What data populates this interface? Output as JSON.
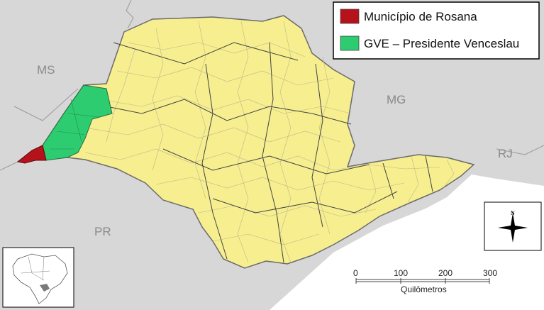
{
  "legend": {
    "items": [
      {
        "label": "Município de Rosana",
        "color": "#b5121b"
      },
      {
        "label": "GVE – Presidente Venceslau",
        "color": "#2ecc71"
      }
    ]
  },
  "region_labels": {
    "ms": "MS",
    "mg": "MG",
    "rj": "RJ",
    "pr": "PR"
  },
  "colors": {
    "state_fill": "#f6ee8f",
    "neighbor_fill": "#d7d7d7",
    "ocean_fill": "#ffffff",
    "border": "#6b6b6b"
  },
  "compass": {
    "north": "N"
  },
  "scale_bar": {
    "ticks": [
      "0",
      "100",
      "200",
      "300"
    ],
    "unit": "Quilômetros"
  },
  "inset": {
    "name": "Brazil locator map"
  }
}
